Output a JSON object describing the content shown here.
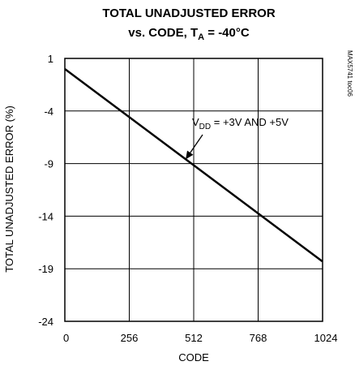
{
  "chart_data": {
    "type": "line",
    "title": "TOTAL UNADJUSTED ERROR",
    "subtitle": "vs. CODE, T",
    "subtitle_sub": "A",
    "subtitle_tail": " = -40°C",
    "xlabel": "CODE",
    "ylabel": "TOTAL UNADJUSTED ERROR (%)",
    "xlim": [
      0,
      1024
    ],
    "ylim": [
      -24,
      1
    ],
    "xticks": [
      "0",
      "256",
      "512",
      "768",
      "1024"
    ],
    "yticks": [
      "1",
      "-4",
      "-9",
      "-14",
      "-19",
      "-24"
    ],
    "xtick_values": [
      0,
      256,
      512,
      768,
      1024
    ],
    "ytick_values": [
      1,
      -4,
      -9,
      -14,
      -19,
      -24
    ],
    "grid": true,
    "series": [
      {
        "x": [
          0,
          1023
        ],
        "y": [
          0.0,
          -18.3
        ]
      }
    ],
    "annotation": {
      "prefix": "V",
      "sub": "DD",
      "suffix": " = +3V AND +5V",
      "points_to": {
        "x": 480,
        "y": -8.6
      }
    },
    "side_id": "MAX5741 toc06"
  }
}
